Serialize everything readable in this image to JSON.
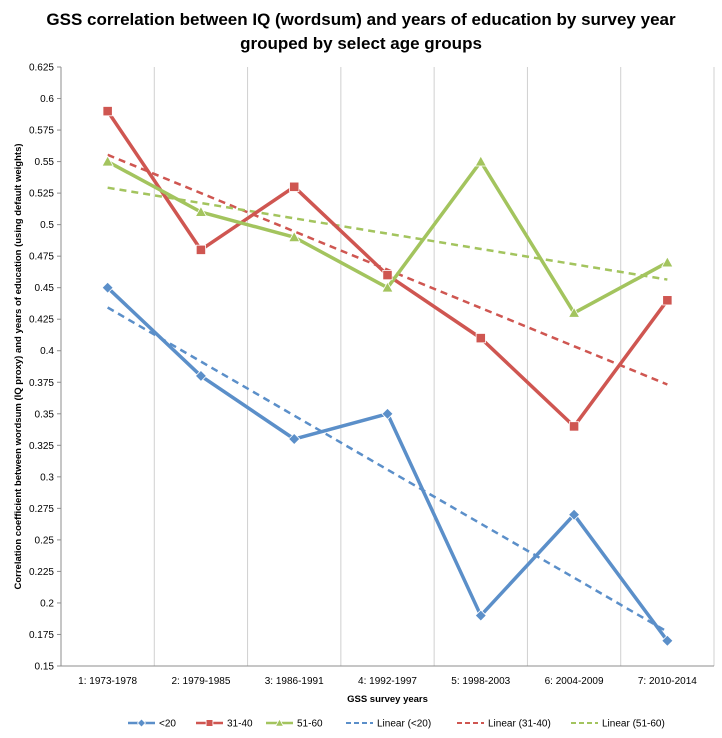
{
  "chart_data": {
    "type": "line",
    "title_lines": [
      "GSS correlation between IQ (wordsum) and years of education by survey year",
      "grouped by select age groups"
    ],
    "xlabel": "GSS survey years",
    "ylabel": "Correlation coefficient between wordsum (IQ proxy) and years of education (using default weights)",
    "categories": [
      "1: 1973-1978",
      "2: 1979-1985",
      "3: 1986-1991",
      "4: 1992-1997",
      "5: 1998-2003",
      "6: 2004-2009",
      "7: 2010-2014"
    ],
    "ylim": [
      0.15,
      0.625
    ],
    "yticks": [
      "0.15",
      "0.175",
      "0.2",
      "0.225",
      "0.25",
      "0.275",
      "0.3",
      "0.325",
      "0.35",
      "0.375",
      "0.4",
      "0.425",
      "0.45",
      "0.475",
      "0.5",
      "0.525",
      "0.55",
      "0.575",
      "0.6",
      "0.625"
    ],
    "grid": "vertical",
    "legend_position": "bottom",
    "series": [
      {
        "name": "<20",
        "values": [
          0.45,
          0.38,
          0.33,
          0.35,
          0.19,
          0.27,
          0.17
        ],
        "color": "#5b8fc9",
        "marker": "diamond"
      },
      {
        "name": "31-40",
        "values": [
          0.59,
          0.48,
          0.53,
          0.46,
          0.41,
          0.34,
          0.44
        ],
        "color": "#cf5651",
        "marker": "square"
      },
      {
        "name": "51-60",
        "values": [
          0.55,
          0.51,
          0.49,
          0.45,
          0.55,
          0.43,
          0.47
        ],
        "color": "#a3c45e",
        "marker": "triangle"
      }
    ],
    "trendlines": [
      {
        "name": "Linear (<20)",
        "of": "<20",
        "color": "#5b8fc9"
      },
      {
        "name": "Linear (31-40)",
        "of": "31-40",
        "color": "#cf5651"
      },
      {
        "name": "Linear (51-60)",
        "of": "51-60",
        "color": "#a3c45e"
      }
    ]
  }
}
